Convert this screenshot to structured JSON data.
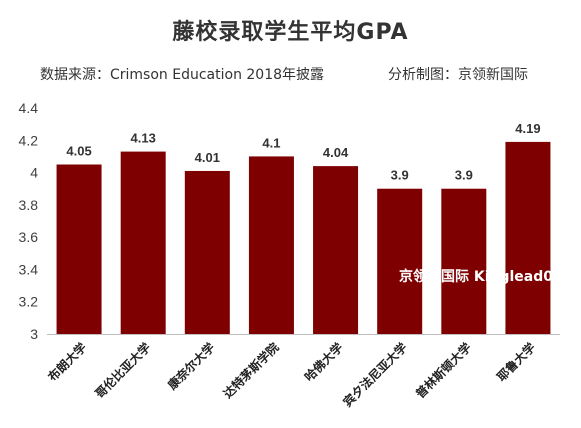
{
  "chart_data": {
    "type": "bar",
    "title": "藤校录取学生平均GPA",
    "subtitle_source": "数据来源：Crimson Education 2018年披露",
    "subtitle_maker": "分析制图：京领新国际",
    "watermark": "京领新国际 Kinglead01",
    "categories": [
      "布朗大学",
      "哥伦比亚大学",
      "康奈尔大学",
      "达特茅斯学院",
      "哈佛大学",
      "宾夕法尼亚大学",
      "普林斯顿大学",
      "耶鲁大学"
    ],
    "values": [
      4.05,
      4.13,
      4.01,
      4.1,
      4.04,
      3.9,
      3.9,
      4.19
    ],
    "data_labels": [
      "4.05",
      "4.13",
      "4.01",
      "4.1",
      "4.04",
      "3.9",
      "3.9",
      "4.19"
    ],
    "yticks": [
      "3",
      "3.2",
      "3.4",
      "3.6",
      "3.8",
      "4",
      "4.2",
      "4.4"
    ],
    "ylim": [
      3,
      4.4
    ],
    "xlabel": "",
    "ylabel": "",
    "grid": false,
    "legend": "none",
    "bar_color": "#7F0000",
    "axis_color": "#BFBFBF"
  }
}
